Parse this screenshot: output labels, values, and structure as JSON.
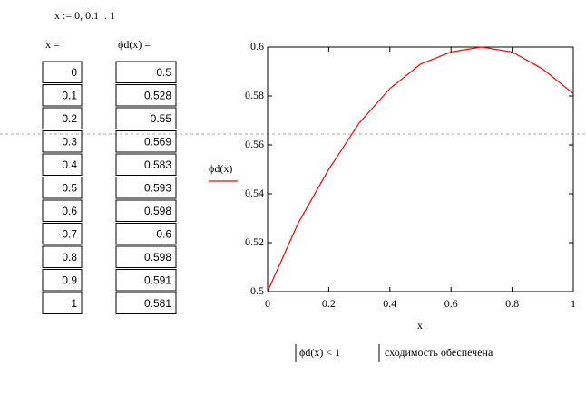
{
  "range_definition": "x := 0, 0.1 .. 1",
  "table_x": {
    "header": "x =",
    "values": [
      0,
      0.1,
      0.2,
      0.3,
      0.4,
      0.5,
      0.6,
      0.7,
      0.8,
      0.9,
      1
    ]
  },
  "table_phi": {
    "header": "ϕd(x) =",
    "values": [
      0.5,
      0.528,
      0.55,
      0.569,
      0.583,
      0.593,
      0.598,
      0.6,
      0.598,
      0.591,
      0.581
    ]
  },
  "chart_data": {
    "type": "line",
    "x_label": "x",
    "x": [
      0,
      0.1,
      0.2,
      0.3,
      0.4,
      0.5,
      0.6,
      0.7,
      0.8,
      0.9,
      1
    ],
    "series": [
      {
        "name": "ϕd(x)",
        "color": "#ff0000",
        "values": [
          0.5,
          0.528,
          0.55,
          0.569,
          0.583,
          0.593,
          0.598,
          0.6,
          0.598,
          0.591,
          0.581
        ]
      }
    ],
    "xlim": [
      0,
      1
    ],
    "xticks": [
      0,
      0.2,
      0.4,
      0.6,
      0.8,
      1
    ],
    "ylim": [
      0.5,
      0.6
    ],
    "yticks": [
      0.5,
      0.52,
      0.54,
      0.56,
      0.58,
      0.6
    ]
  },
  "condition": {
    "expression": "ϕd(x) < 1",
    "text": "сходимость обеспечена"
  }
}
